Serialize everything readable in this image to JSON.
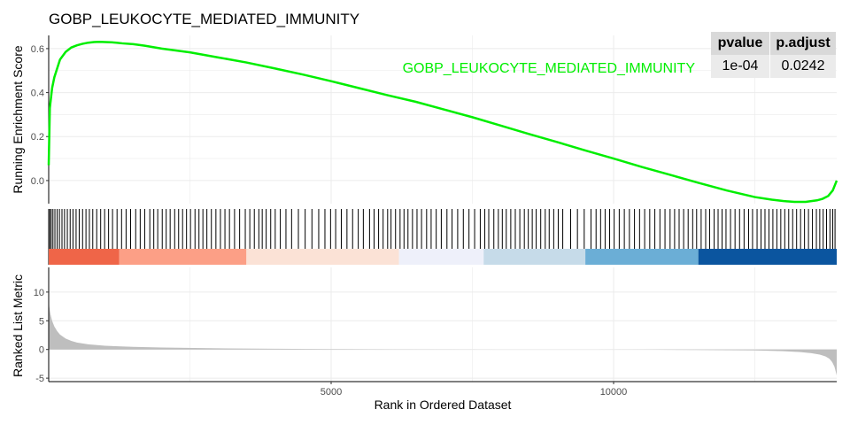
{
  "title": "GOBP_LEUKOCYTE_MEDIATED_IMMUNITY",
  "legend_label": "GOBP_LEUKOCYTE_MEDIATED_IMMUNITY",
  "stats_table": {
    "headers": [
      "pvalue",
      "p.adjust"
    ],
    "values": [
      "1e-04",
      "0.0242"
    ]
  },
  "colors": {
    "es_line": "#00ee00",
    "metric_fill": "#bebebe",
    "hits": "#000000",
    "grid": "#ebebeb",
    "heat_red": "#e8573f",
    "heat_blue": "#08519c"
  },
  "chart_data": [
    {
      "type": "line",
      "name": "running-enrichment",
      "title": "GOBP_LEUKOCYTE_MEDIATED_IMMUNITY",
      "ylabel": "Running Enrichment Score",
      "xlim": [
        0,
        13950
      ],
      "ylim": [
        -0.105,
        0.66
      ],
      "yticks": [
        0.0,
        0.2,
        0.4,
        0.6
      ],
      "ytick_labels": [
        "0.0",
        "0.2",
        "0.4",
        "0.6"
      ],
      "grid": true,
      "series": [
        {
          "x": [
            0,
            20,
            60,
            100,
            150,
            200,
            300,
            400,
            500,
            600,
            700,
            800,
            900,
            1000,
            1100,
            1200,
            1300,
            1500,
            1700,
            2000,
            2500,
            3000,
            3500,
            4000,
            4500,
            5000,
            5500,
            6000,
            6500,
            7000,
            7500,
            8000,
            8500,
            9000,
            9500,
            10000,
            10500,
            11000,
            11500,
            12000,
            12500,
            12800,
            13000,
            13200,
            13400,
            13600,
            13700,
            13800,
            13880,
            13950
          ],
          "y": [
            0.07,
            0.33,
            0.42,
            0.47,
            0.51,
            0.55,
            0.585,
            0.605,
            0.615,
            0.622,
            0.627,
            0.63,
            0.631,
            0.63,
            0.629,
            0.627,
            0.624,
            0.62,
            0.613,
            0.6,
            0.583,
            0.56,
            0.537,
            0.51,
            0.482,
            0.452,
            0.42,
            0.388,
            0.358,
            0.323,
            0.288,
            0.25,
            0.212,
            0.175,
            0.137,
            0.1,
            0.062,
            0.026,
            -0.01,
            -0.045,
            -0.075,
            -0.087,
            -0.093,
            -0.097,
            -0.097,
            -0.09,
            -0.083,
            -0.07,
            -0.045,
            0.0
          ]
        }
      ]
    },
    {
      "type": "bar",
      "name": "hit-positions",
      "xlim": [
        0,
        13950
      ],
      "gene_set_hits": [
        0,
        20,
        45,
        75,
        110,
        150,
        190,
        235,
        280,
        330,
        380,
        430,
        485,
        540,
        600,
        660,
        720,
        780,
        850,
        920,
        990,
        1060,
        1130,
        1210,
        1290,
        1370,
        1450,
        1540,
        1620,
        1700,
        1790,
        1860,
        1930,
        2010,
        2080,
        2150,
        2230,
        2300,
        2370,
        2440,
        2510,
        2590,
        2660,
        2730,
        2800,
        2880,
        2960,
        3040,
        3120,
        3200,
        3290,
        3380,
        3480,
        3560,
        3640,
        3720,
        3780,
        3850,
        3930,
        4010,
        4100,
        4200,
        4300,
        4420,
        4540,
        4660,
        4780,
        4890,
        4990,
        5080,
        5180,
        5280,
        5380,
        5480,
        5570,
        5680,
        5760,
        5840,
        5920,
        6000,
        6060,
        6140,
        6220,
        6290,
        6360,
        6440,
        6520,
        6600,
        6690,
        6770,
        6860,
        6950,
        7050,
        7140,
        7240,
        7340,
        7440,
        7540,
        7640,
        7720,
        7790,
        7880,
        7960,
        8030,
        8100,
        8180,
        8260,
        8340,
        8420,
        8490,
        8560,
        8630,
        8710,
        8790,
        8860,
        8940,
        9020,
        9100,
        9240,
        9360,
        9480,
        9600,
        9690,
        9770,
        9850,
        9930,
        10010,
        10100,
        10190,
        10280,
        10370,
        10460,
        10550,
        10640,
        10730,
        10820,
        10910,
        11000,
        11080,
        11160,
        11240,
        11320,
        11400,
        11470,
        11550,
        11630,
        11700,
        11780,
        11850,
        11920,
        11990,
        12070,
        12150,
        12230,
        12310,
        12390,
        12460,
        12540,
        12610,
        12680,
        12750,
        12820,
        12890,
        12960,
        13030,
        13100,
        13170,
        13240,
        13310,
        13380,
        13450,
        13520,
        13590,
        13650,
        13710,
        13770,
        13830,
        13880,
        13920
      ]
    },
    {
      "type": "heatmap",
      "name": "rank-color-bar",
      "xlim": [
        0,
        13950
      ],
      "segments": [
        {
          "start": 0,
          "end": 1250,
          "color": "#ef6548"
        },
        {
          "start": 1250,
          "end": 3500,
          "color": "#fc9f86"
        },
        {
          "start": 3500,
          "end": 6200,
          "color": "#fbe2d6"
        },
        {
          "start": 6200,
          "end": 7700,
          "color": "#eef0fa"
        },
        {
          "start": 7700,
          "end": 9500,
          "color": "#c6dbe9"
        },
        {
          "start": 9500,
          "end": 11500,
          "color": "#6baed6"
        },
        {
          "start": 11500,
          "end": 13950,
          "color": "#0b559f"
        }
      ]
    },
    {
      "type": "area",
      "name": "ranked-list-metric",
      "xlabel": "Rank in Ordered Dataset",
      "ylabel": "Ranked List Metric",
      "xlim": [
        0,
        13950
      ],
      "ylim": [
        -5.6,
        14.3
      ],
      "xticks": [
        5000,
        10000
      ],
      "xtick_labels": [
        "5000",
        "10000"
      ],
      "yticks": [
        -5,
        0,
        5,
        10
      ],
      "ytick_labels": [
        "-5",
        "0",
        "5",
        "10"
      ],
      "grid": true,
      "gap": [
        8950,
        9650
      ],
      "series": [
        {
          "x": [
            0,
            10,
            30,
            60,
            100,
            150,
            200,
            300,
            400,
            500,
            700,
            1000,
            1500,
            2000,
            3000,
            4000,
            5000,
            6000,
            7000,
            8000,
            8950,
            9650,
            10500,
            11500,
            12500,
            13000,
            13300,
            13500,
            13650,
            13750,
            13820,
            13870,
            13910,
            13950
          ],
          "y": [
            9,
            7.5,
            6.2,
            5.0,
            4.0,
            3.2,
            2.6,
            1.9,
            1.5,
            1.2,
            0.9,
            0.65,
            0.45,
            0.33,
            0.2,
            0.13,
            0.07,
            0.03,
            0.01,
            0.0,
            0.0,
            -0.01,
            -0.03,
            -0.08,
            -0.17,
            -0.3,
            -0.45,
            -0.65,
            -0.9,
            -1.2,
            -1.6,
            -2.2,
            -3.0,
            -4.5
          ]
        }
      ]
    }
  ]
}
